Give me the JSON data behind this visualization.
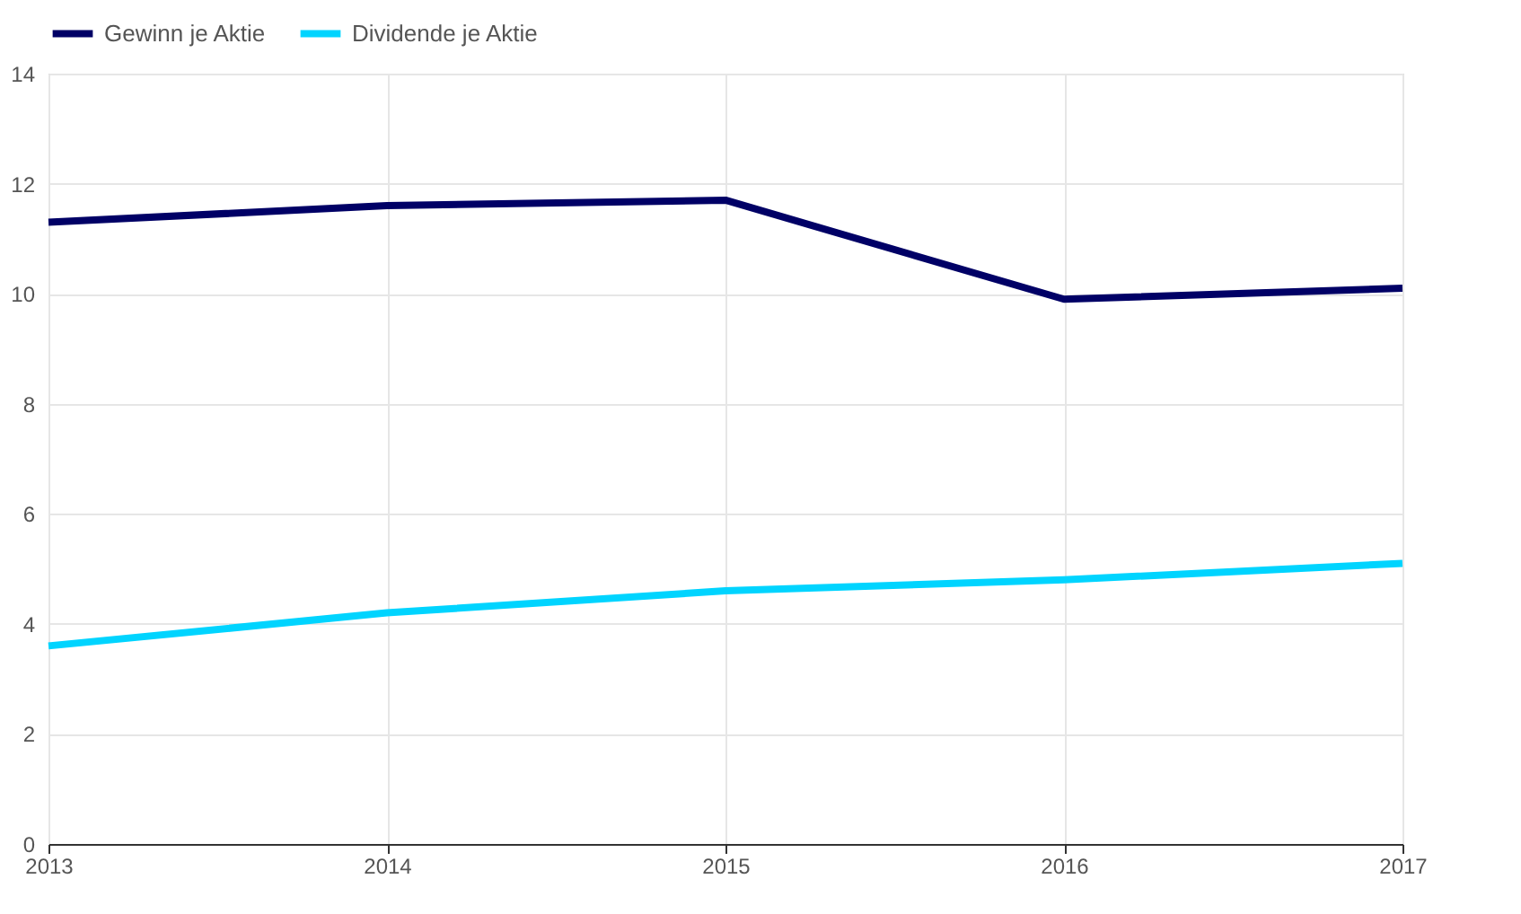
{
  "chart_data": {
    "type": "line",
    "x": [
      2013,
      2014,
      2015,
      2016,
      2017
    ],
    "series": [
      {
        "name": "Gewinn je Aktie",
        "color": "#000066",
        "values": [
          11.3,
          11.6,
          11.7,
          9.9,
          10.1
        ]
      },
      {
        "name": "Dividende je Aktie",
        "color": "#00d4ff",
        "values": [
          3.6,
          4.2,
          4.6,
          4.8,
          5.1
        ]
      }
    ],
    "xlim": [
      2013,
      2017
    ],
    "xticks": [
      2013,
      2014,
      2015,
      2016,
      2017
    ],
    "ylim": [
      0,
      14
    ],
    "yticks": [
      0,
      2,
      4,
      6,
      8,
      10,
      12,
      14
    ],
    "grid": true,
    "legend": "top left",
    "marker": "none",
    "line_style": "solid"
  }
}
